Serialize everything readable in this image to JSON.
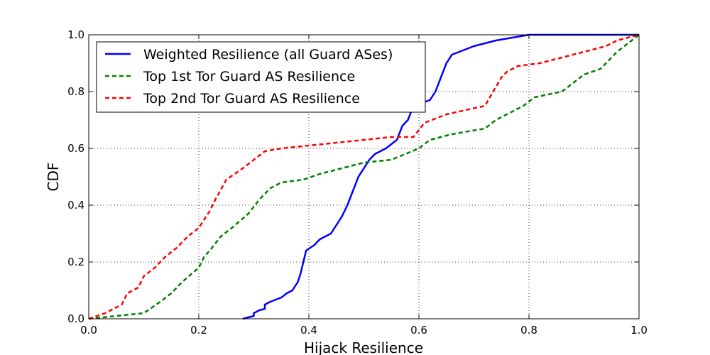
{
  "chart_data": {
    "type": "line",
    "title": "",
    "xlabel": "Hijack Resilience",
    "ylabel": "CDF",
    "xlim": [
      0.0,
      1.0
    ],
    "ylim": [
      0.0,
      1.0
    ],
    "xticks": [
      "0.0",
      "0.2",
      "0.4",
      "0.6",
      "0.8",
      "1.0"
    ],
    "yticks": [
      "0.0",
      "0.2",
      "0.4",
      "0.6",
      "0.8",
      "1.0"
    ],
    "grid": true,
    "legend_position": "top-left",
    "series": [
      {
        "name": "Weighted Resilience (all Guard ASes)",
        "color": "#0000ff",
        "dash": "solid",
        "points": [
          [
            0.28,
            0.0
          ],
          [
            0.3,
            0.01
          ],
          [
            0.3,
            0.02
          ],
          [
            0.31,
            0.03
          ],
          [
            0.32,
            0.035
          ],
          [
            0.32,
            0.05
          ],
          [
            0.33,
            0.06
          ],
          [
            0.35,
            0.075
          ],
          [
            0.36,
            0.09
          ],
          [
            0.37,
            0.1
          ],
          [
            0.38,
            0.13
          ],
          [
            0.385,
            0.16
          ],
          [
            0.39,
            0.2
          ],
          [
            0.395,
            0.24
          ],
          [
            0.41,
            0.26
          ],
          [
            0.42,
            0.28
          ],
          [
            0.44,
            0.3
          ],
          [
            0.45,
            0.33
          ],
          [
            0.46,
            0.36
          ],
          [
            0.47,
            0.4
          ],
          [
            0.48,
            0.45
          ],
          [
            0.49,
            0.5
          ],
          [
            0.5,
            0.53
          ],
          [
            0.51,
            0.56
          ],
          [
            0.52,
            0.58
          ],
          [
            0.54,
            0.6
          ],
          [
            0.56,
            0.63
          ],
          [
            0.57,
            0.68
          ],
          [
            0.58,
            0.7
          ],
          [
            0.59,
            0.75
          ],
          [
            0.62,
            0.77
          ],
          [
            0.63,
            0.8
          ],
          [
            0.64,
            0.85
          ],
          [
            0.65,
            0.9
          ],
          [
            0.66,
            0.93
          ],
          [
            0.7,
            0.96
          ],
          [
            0.74,
            0.98
          ],
          [
            0.8,
            1.0
          ],
          [
            1.0,
            1.0
          ]
        ]
      },
      {
        "name": "Top 1st Tor Guard AS Resilience",
        "color": "#008000",
        "dash": "dashed",
        "points": [
          [
            0.0,
            0.0
          ],
          [
            0.05,
            0.01
          ],
          [
            0.1,
            0.02
          ],
          [
            0.13,
            0.06
          ],
          [
            0.15,
            0.09
          ],
          [
            0.17,
            0.13
          ],
          [
            0.2,
            0.18
          ],
          [
            0.21,
            0.22
          ],
          [
            0.22,
            0.24
          ],
          [
            0.24,
            0.29
          ],
          [
            0.26,
            0.32
          ],
          [
            0.29,
            0.37
          ],
          [
            0.31,
            0.42
          ],
          [
            0.33,
            0.46
          ],
          [
            0.35,
            0.48
          ],
          [
            0.39,
            0.49
          ],
          [
            0.42,
            0.51
          ],
          [
            0.46,
            0.53
          ],
          [
            0.5,
            0.55
          ],
          [
            0.55,
            0.56
          ],
          [
            0.6,
            0.6
          ],
          [
            0.62,
            0.63
          ],
          [
            0.66,
            0.65
          ],
          [
            0.72,
            0.67
          ],
          [
            0.74,
            0.7
          ],
          [
            0.79,
            0.75
          ],
          [
            0.81,
            0.78
          ],
          [
            0.86,
            0.8
          ],
          [
            0.88,
            0.83
          ],
          [
            0.9,
            0.86
          ],
          [
            0.93,
            0.88
          ],
          [
            0.96,
            0.94
          ],
          [
            0.98,
            0.97
          ],
          [
            1.0,
            1.0
          ]
        ]
      },
      {
        "name": "Top 2nd Tor Guard AS Resilience",
        "color": "#ff0000",
        "dash": "dashed",
        "points": [
          [
            0.0,
            0.0
          ],
          [
            0.03,
            0.02
          ],
          [
            0.06,
            0.05
          ],
          [
            0.07,
            0.09
          ],
          [
            0.09,
            0.11
          ],
          [
            0.1,
            0.15
          ],
          [
            0.12,
            0.18
          ],
          [
            0.14,
            0.22
          ],
          [
            0.16,
            0.25
          ],
          [
            0.18,
            0.29
          ],
          [
            0.2,
            0.32
          ],
          [
            0.22,
            0.38
          ],
          [
            0.23,
            0.42
          ],
          [
            0.25,
            0.49
          ],
          [
            0.28,
            0.53
          ],
          [
            0.3,
            0.56
          ],
          [
            0.32,
            0.59
          ],
          [
            0.35,
            0.6
          ],
          [
            0.4,
            0.61
          ],
          [
            0.45,
            0.62
          ],
          [
            0.5,
            0.63
          ],
          [
            0.55,
            0.64
          ],
          [
            0.59,
            0.64
          ],
          [
            0.61,
            0.69
          ],
          [
            0.65,
            0.72
          ],
          [
            0.72,
            0.75
          ],
          [
            0.75,
            0.85
          ],
          [
            0.76,
            0.87
          ],
          [
            0.78,
            0.89
          ],
          [
            0.82,
            0.9
          ],
          [
            0.86,
            0.92
          ],
          [
            0.9,
            0.94
          ],
          [
            0.94,
            0.96
          ],
          [
            0.96,
            0.98
          ],
          [
            0.98,
            0.99
          ],
          [
            1.0,
            1.0
          ]
        ]
      }
    ]
  }
}
